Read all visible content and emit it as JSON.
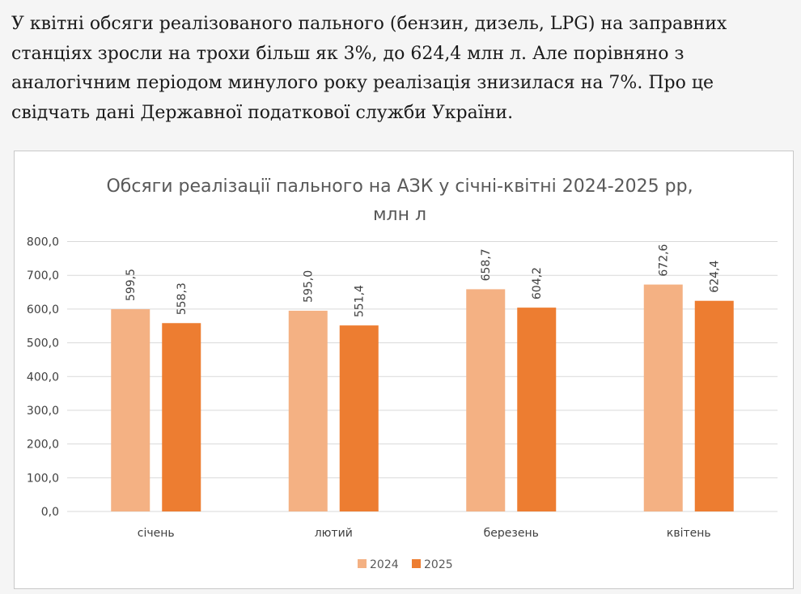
{
  "article": {
    "paragraph": "У квітні обсяги реалізованого пального (бензин, дизель, LPG) на заправних станціях зросли на трохи більш як 3%, до 624,4 млн л. Але порівняно з аналогічним періодом минулого року реалізація знизилася на 7%. Про це свідчать дані Державної податкової служби України."
  },
  "chart_data": {
    "type": "bar",
    "title_line1": "Обсяги реалізації пального на АЗК у січні-квітні 2024-2025 рр,",
    "title_line2": "млн л",
    "categories": [
      "січень",
      "лютий",
      "березень",
      "квітень"
    ],
    "series": [
      {
        "name": "2024",
        "color": "#F4B183",
        "values": [
          599.5,
          595.0,
          658.7,
          672.6
        ],
        "labels": [
          "599,5",
          "595,0",
          "658,7",
          "672,6"
        ]
      },
      {
        "name": "2025",
        "color": "#ED7D31",
        "values": [
          558.3,
          551.4,
          604.2,
          624.4
        ],
        "labels": [
          "558,3",
          "551,4",
          "604,2",
          "624,4"
        ]
      }
    ],
    "ylim": [
      0,
      800
    ],
    "yticks": [
      0,
      100,
      200,
      300,
      400,
      500,
      600,
      700,
      800
    ],
    "ytick_labels": [
      "0,0",
      "100,0",
      "200,0",
      "300,0",
      "400,0",
      "500,0",
      "600,0",
      "700,0",
      "800,0"
    ],
    "grid": true,
    "legend_position": "bottom-center",
    "gridline_color": "#d9d9d9"
  }
}
